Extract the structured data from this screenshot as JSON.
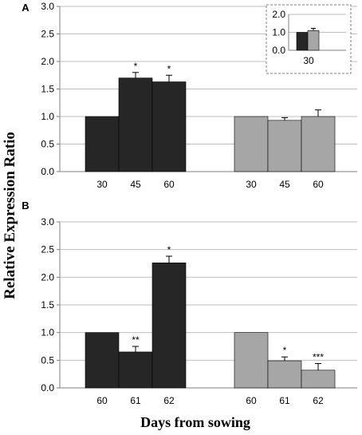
{
  "figure": {
    "ylabel": "Relative Expression Ratio",
    "xlabel": "Days from sowing"
  },
  "colors": {
    "dark": "#262626",
    "light": "#a6a6a6",
    "grid": "#bfbfbf",
    "axis": "#808080"
  },
  "chart_data": [
    {
      "type": "bar",
      "panel": "A",
      "ylim": [
        0,
        3
      ],
      "yticks": [
        "0.0",
        "0.5",
        "1.0",
        "1.5",
        "2.0",
        "2.5",
        "3.0"
      ],
      "grid": true,
      "groups": [
        {
          "color": "dark",
          "categories": [
            "30",
            "45",
            "60"
          ],
          "values": [
            1.0,
            1.7,
            1.63
          ],
          "errors": [
            0,
            0.1,
            0.12
          ],
          "significance": [
            "",
            "*",
            "*"
          ]
        },
        {
          "color": "light",
          "categories": [
            "30",
            "45",
            "60"
          ],
          "values": [
            1.0,
            0.93,
            1.0
          ],
          "errors": [
            0,
            0.05,
            0.12
          ],
          "significance": [
            "",
            "",
            ""
          ]
        }
      ],
      "inset": {
        "type": "bar",
        "ylim": [
          0,
          2
        ],
        "yticks": [
          "0.0",
          "1.0",
          "2.0"
        ],
        "categories": [
          "30"
        ],
        "series": [
          {
            "color": "dark",
            "values": [
              1.0
            ]
          },
          {
            "color": "light",
            "values": [
              1.1
            ],
            "errors": [
              0.12
            ]
          }
        ]
      }
    },
    {
      "type": "bar",
      "panel": "B",
      "ylim": [
        0,
        3
      ],
      "yticks": [
        "0.0",
        "0.5",
        "1.0",
        "1.5",
        "2.0",
        "2.5",
        "3.0"
      ],
      "grid": true,
      "groups": [
        {
          "color": "dark",
          "categories": [
            "60",
            "61",
            "62"
          ],
          "values": [
            1.0,
            0.65,
            2.26
          ],
          "errors": [
            0,
            0.1,
            0.12
          ],
          "significance": [
            "",
            "**",
            "*"
          ]
        },
        {
          "color": "light",
          "categories": [
            "60",
            "61",
            "62"
          ],
          "values": [
            1.0,
            0.49,
            0.32
          ],
          "errors": [
            0,
            0.07,
            0.12
          ],
          "significance": [
            "",
            "*",
            "***"
          ]
        }
      ]
    }
  ]
}
